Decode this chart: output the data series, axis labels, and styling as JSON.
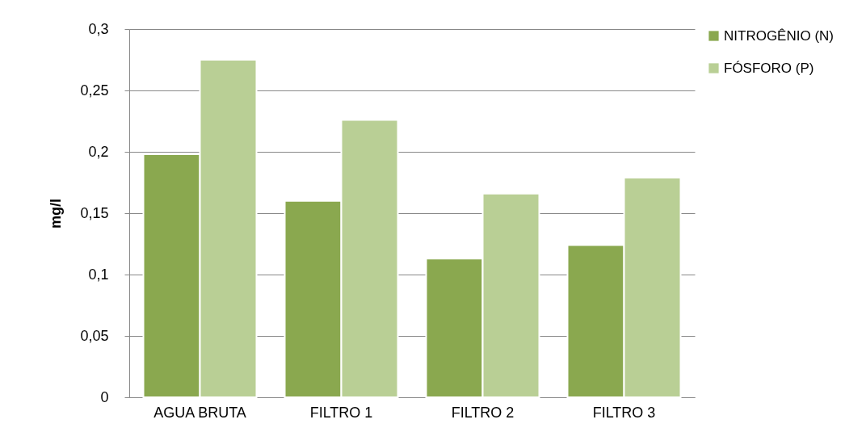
{
  "chart_data": {
    "type": "bar",
    "ylabel": "mg/l",
    "categories": [
      "AGUA BRUTA",
      "FILTRO 1",
      "FILTRO 2",
      "FILTRO 3"
    ],
    "series": [
      {
        "name": "NITROGÊNIO (N)",
        "color": "#8aa84f",
        "values": [
          0.198,
          0.16,
          0.113,
          0.124
        ]
      },
      {
        "name": "FÓSFORO (P)",
        "color": "#b9cf95",
        "values": [
          0.275,
          0.226,
          0.166,
          0.179
        ]
      }
    ],
    "ylim": [
      0,
      0.3
    ],
    "yticks": [
      0,
      {
        "value": 0.05,
        "label": "0,05"
      },
      {
        "value": 0.1,
        "label": "0,1"
      },
      {
        "value": 0.15,
        "label": "0,15"
      },
      {
        "value": 0.2,
        "label": "0,2"
      },
      {
        "value": 0.25,
        "label": "0,25"
      },
      {
        "value": 0.3,
        "label": "0,3"
      }
    ],
    "grid": "y",
    "legend": "right"
  }
}
